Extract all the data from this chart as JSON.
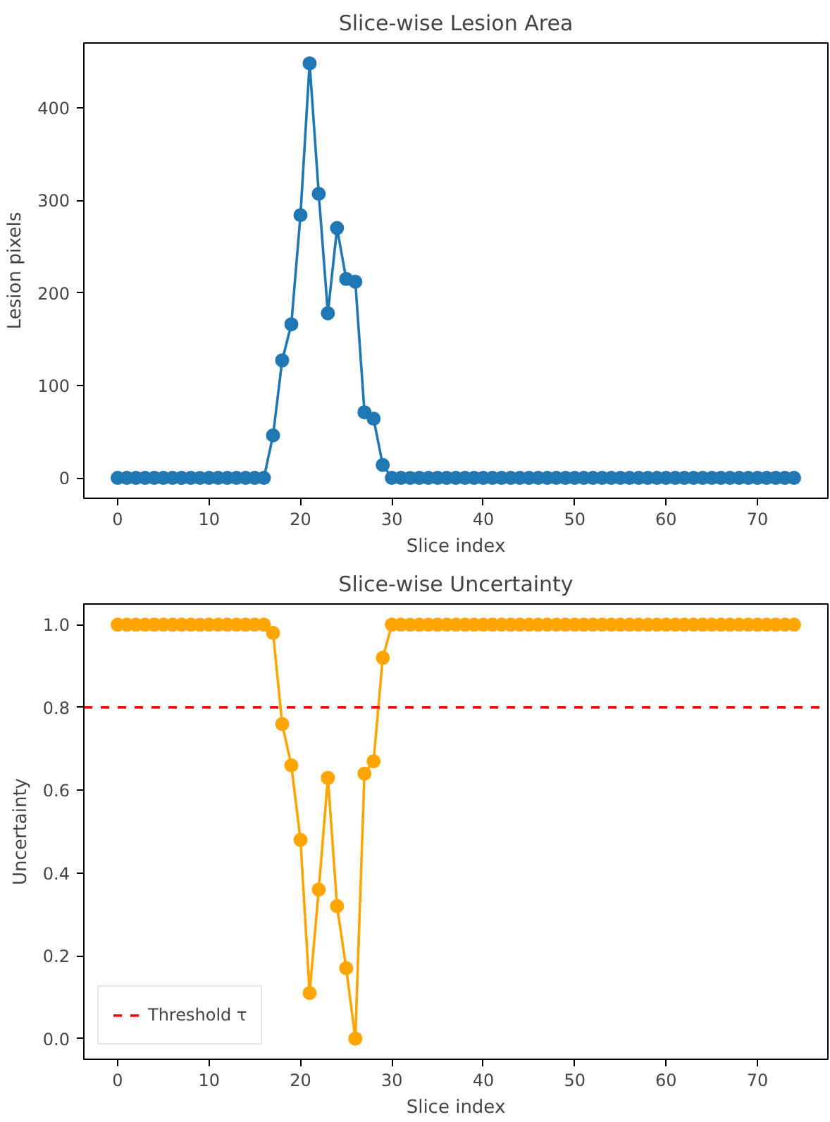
{
  "chart_data": [
    {
      "type": "line",
      "title": "Slice-wise Lesion Area",
      "xlabel": "Slice index",
      "ylabel": "Lesion pixels",
      "x": [
        0,
        1,
        2,
        3,
        4,
        5,
        6,
        7,
        8,
        9,
        10,
        11,
        12,
        13,
        14,
        15,
        16,
        17,
        18,
        19,
        20,
        21,
        22,
        23,
        24,
        25,
        26,
        27,
        28,
        29,
        30,
        31,
        32,
        33,
        34,
        35,
        36,
        37,
        38,
        39,
        40,
        41,
        42,
        43,
        44,
        45,
        46,
        47,
        48,
        49,
        50,
        51,
        52,
        53,
        54,
        55,
        56,
        57,
        58,
        59,
        60,
        61,
        62,
        63,
        64,
        65,
        66,
        67,
        68,
        69,
        70,
        71,
        72,
        73,
        74
      ],
      "series": [
        {
          "color": "#1f77b4",
          "values": [
            0,
            0,
            0,
            0,
            0,
            0,
            0,
            0,
            0,
            0,
            0,
            0,
            0,
            0,
            0,
            0,
            0,
            46,
            127,
            166,
            284,
            448,
            307,
            178,
            270,
            215,
            212,
            71,
            64,
            14,
            0,
            0,
            0,
            0,
            0,
            0,
            0,
            0,
            0,
            0,
            0,
            0,
            0,
            0,
            0,
            0,
            0,
            0,
            0,
            0,
            0,
            0,
            0,
            0,
            0,
            0,
            0,
            0,
            0,
            0,
            0,
            0,
            0,
            0,
            0,
            0,
            0,
            0,
            0,
            0,
            0,
            0,
            0,
            0,
            0
          ]
        }
      ],
      "xlim": [
        -3.7,
        77.7
      ],
      "ylim": [
        -22,
        470
      ],
      "xticks": [
        0,
        10,
        20,
        30,
        40,
        50,
        60,
        70
      ],
      "yticks": [
        0,
        100,
        200,
        300,
        400
      ],
      "marker": "circle",
      "grid": false,
      "legend": false
    },
    {
      "type": "line",
      "title": "Slice-wise Uncertainty",
      "xlabel": "Slice index",
      "ylabel": "Uncertainty",
      "x": [
        0,
        1,
        2,
        3,
        4,
        5,
        6,
        7,
        8,
        9,
        10,
        11,
        12,
        13,
        14,
        15,
        16,
        17,
        18,
        19,
        20,
        21,
        22,
        23,
        24,
        25,
        26,
        27,
        28,
        29,
        30,
        31,
        32,
        33,
        34,
        35,
        36,
        37,
        38,
        39,
        40,
        41,
        42,
        43,
        44,
        45,
        46,
        47,
        48,
        49,
        50,
        51,
        52,
        53,
        54,
        55,
        56,
        57,
        58,
        59,
        60,
        61,
        62,
        63,
        64,
        65,
        66,
        67,
        68,
        69,
        70,
        71,
        72,
        73,
        74
      ],
      "series": [
        {
          "color": "#ffa500",
          "values": [
            1,
            1,
            1,
            1,
            1,
            1,
            1,
            1,
            1,
            1,
            1,
            1,
            1,
            1,
            1,
            1,
            1,
            0.98,
            0.76,
            0.66,
            0.48,
            0.11,
            0.36,
            0.63,
            0.32,
            0.17,
            0.0,
            0.64,
            0.67,
            0.92,
            1,
            1,
            1,
            1,
            1,
            1,
            1,
            1,
            1,
            1,
            1,
            1,
            1,
            1,
            1,
            1,
            1,
            1,
            1,
            1,
            1,
            1,
            1,
            1,
            1,
            1,
            1,
            1,
            1,
            1,
            1,
            1,
            1,
            1,
            1,
            1,
            1,
            1,
            1,
            1,
            1,
            1,
            1,
            1,
            1
          ]
        }
      ],
      "ref_lines": [
        {
          "axis": "y",
          "value": 0.8,
          "label": "Threshold τ",
          "color": "#ff0000",
          "line_style": "dashed"
        }
      ],
      "xlim": [
        -3.7,
        77.7
      ],
      "ylim": [
        -0.05,
        1.05
      ],
      "xticks": [
        0,
        10,
        20,
        30,
        40,
        50,
        60,
        70
      ],
      "yticks": [
        {
          "value": 0,
          "label": "0.0"
        },
        {
          "value": 0.2,
          "label": "0.2"
        },
        {
          "value": 0.4,
          "label": "0.4"
        },
        {
          "value": 0.6,
          "label": "0.6"
        },
        {
          "value": 0.8,
          "label": "0.8"
        },
        {
          "value": 1,
          "label": "1.0"
        }
      ],
      "marker": "circle",
      "grid": false,
      "legend": "bottom left"
    }
  ]
}
